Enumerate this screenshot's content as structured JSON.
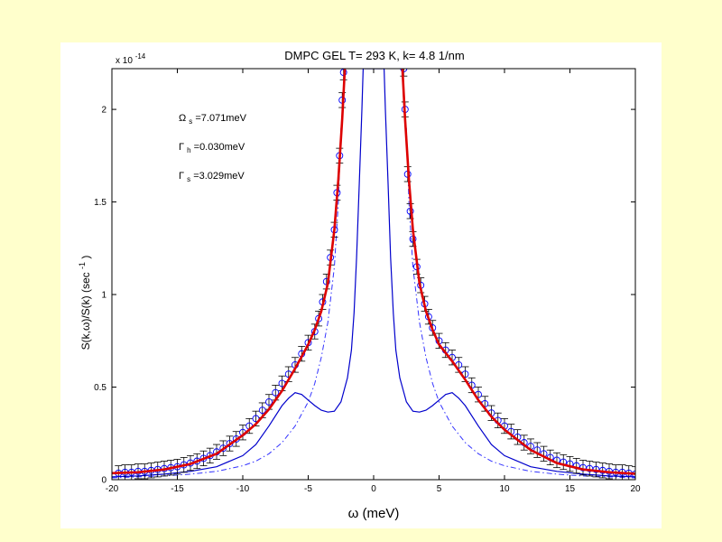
{
  "chart_data": {
    "type": "scatter",
    "title": "DMPC GEL  T= 293 K, k= 4.8 1/nm",
    "xlabel": "ω (meV)",
    "ylabel": "S(k,ω)/S(k) (sec",
    "ylabel_sup": "-1",
    "ylabel_close": ")",
    "y_multiplier": "x 10",
    "y_multiplier_exp": "-14",
    "xlim": [
      -20,
      20
    ],
    "ylim": [
      0,
      2.22
    ],
    "xticks": [
      -20,
      -15,
      -10,
      -5,
      0,
      5,
      10,
      15,
      20
    ],
    "yticks": [
      0,
      0.5,
      1,
      1.5,
      2
    ],
    "ytick_labels": [
      "0",
      "0.5",
      "1",
      "1.5",
      "2"
    ],
    "grid": false,
    "annotations": [
      {
        "sym": "Ω",
        "sub": "s",
        "text": "=7.071meV"
      },
      {
        "sym": "Γ",
        "sub": "h",
        "text": "=0.030meV"
      },
      {
        "sym": "Γ",
        "sub": "s",
        "text": "=3.029meV"
      }
    ],
    "series": [
      {
        "style": "markers with error bars",
        "marker": "circle",
        "color": "#0000ff",
        "errorbar_color": "#000000",
        "x": [
          -19.5,
          -19.0,
          -18.5,
          -18.0,
          -17.5,
          -17.0,
          -16.5,
          -16.0,
          -15.5,
          -15.0,
          -14.5,
          -14.0,
          -13.5,
          -13.0,
          -12.5,
          -12.0,
          -11.5,
          -11.0,
          -10.5,
          -10.0,
          -9.5,
          -9.0,
          -8.5,
          -8.0,
          -7.5,
          -7.0,
          -6.5,
          -6.0,
          -5.5,
          -5.0,
          -4.5,
          -4.2,
          -3.9,
          -3.6,
          -3.3,
          -3.0,
          -2.8,
          -2.6,
          -2.4,
          -2.3,
          2.3,
          2.4,
          2.6,
          2.8,
          3.0,
          3.3,
          3.6,
          3.9,
          4.2,
          4.5,
          5.0,
          5.5,
          6.0,
          6.5,
          7.0,
          7.5,
          8.0,
          8.5,
          9.0,
          9.5,
          10.0,
          10.5,
          11.0,
          11.5,
          12.0,
          12.5,
          13.0,
          13.5,
          14.0,
          14.5,
          15.0,
          15.5,
          16.0,
          16.5,
          17.0,
          17.5,
          18.0,
          18.5,
          19.0,
          19.5,
          20.0
        ],
        "y": [
          0.035,
          0.04,
          0.04,
          0.045,
          0.045,
          0.05,
          0.055,
          0.06,
          0.065,
          0.07,
          0.08,
          0.09,
          0.1,
          0.115,
          0.13,
          0.15,
          0.17,
          0.195,
          0.22,
          0.255,
          0.29,
          0.33,
          0.375,
          0.42,
          0.47,
          0.52,
          0.57,
          0.62,
          0.68,
          0.74,
          0.8,
          0.87,
          0.96,
          1.07,
          1.2,
          1.35,
          1.55,
          1.75,
          2.05,
          2.2,
          2.22,
          2.0,
          1.65,
          1.45,
          1.3,
          1.15,
          1.05,
          0.95,
          0.88,
          0.82,
          0.75,
          0.7,
          0.66,
          0.62,
          0.57,
          0.51,
          0.46,
          0.41,
          0.36,
          0.32,
          0.29,
          0.26,
          0.23,
          0.2,
          0.18,
          0.16,
          0.14,
          0.12,
          0.105,
          0.095,
          0.085,
          0.075,
          0.065,
          0.06,
          0.055,
          0.05,
          0.045,
          0.04,
          0.04,
          0.035,
          0.03
        ],
        "yerr": 0.04
      },
      {
        "style": "thick solid fit",
        "color": "#dd0000",
        "x": [
          -20,
          -18,
          -16,
          -14,
          -12,
          -10,
          -9,
          -8,
          -7,
          -6,
          -5,
          -4.5,
          -4,
          -3.5,
          -3,
          -2.7,
          -2.4,
          -2.2,
          2.2,
          2.4,
          2.7,
          3,
          3.5,
          4,
          4.5,
          5,
          6,
          7,
          8,
          9,
          10,
          12,
          14,
          16,
          18,
          20
        ],
        "y": [
          0.035,
          0.04,
          0.055,
          0.085,
          0.14,
          0.24,
          0.3,
          0.38,
          0.48,
          0.6,
          0.73,
          0.81,
          0.91,
          1.06,
          1.35,
          1.62,
          1.95,
          2.22,
          2.22,
          1.95,
          1.62,
          1.35,
          1.06,
          0.91,
          0.81,
          0.73,
          0.64,
          0.54,
          0.43,
          0.34,
          0.27,
          0.16,
          0.09,
          0.055,
          0.04,
          0.032
        ]
      },
      {
        "style": "solid",
        "color": "#0000cc",
        "x": [
          -20,
          -18,
          -16,
          -14,
          -12,
          -10,
          -9,
          -8,
          -7,
          -6.5,
          -6,
          -5.5,
          -5,
          -4.5,
          -4,
          -3.5,
          -3,
          -2.5,
          -2,
          -1.7,
          -1.5,
          -1.3,
          -1.1,
          -0.9,
          -0.8,
          0.8,
          0.9,
          1.1,
          1.3,
          1.5,
          1.7,
          2,
          2.5,
          3,
          3.5,
          4,
          4.5,
          5,
          5.5,
          6,
          6.5,
          7,
          8,
          9,
          10,
          12,
          14,
          16,
          18,
          20
        ],
        "y": [
          0.015,
          0.02,
          0.03,
          0.045,
          0.07,
          0.13,
          0.19,
          0.29,
          0.4,
          0.44,
          0.47,
          0.46,
          0.43,
          0.4,
          0.375,
          0.365,
          0.37,
          0.42,
          0.55,
          0.7,
          0.9,
          1.2,
          1.6,
          2.0,
          2.22,
          2.22,
          2.0,
          1.6,
          1.2,
          0.9,
          0.7,
          0.55,
          0.42,
          0.37,
          0.365,
          0.375,
          0.4,
          0.43,
          0.46,
          0.47,
          0.44,
          0.4,
          0.29,
          0.19,
          0.13,
          0.07,
          0.045,
          0.03,
          0.02,
          0.015
        ]
      },
      {
        "style": "dash-dot",
        "color": "#3333ff",
        "x": [
          -20,
          -18,
          -16,
          -14,
          -12,
          -10,
          -9,
          -8,
          -7,
          -6,
          -5,
          -4.5,
          -4,
          -3.5,
          -3,
          -2.7,
          -2.5,
          2.5,
          2.7,
          3,
          3.5,
          4,
          4.5,
          5,
          6,
          7,
          8,
          9,
          10,
          12,
          14,
          16,
          18,
          20
        ],
        "y": [
          0.01,
          0.015,
          0.02,
          0.03,
          0.045,
          0.075,
          0.1,
          0.14,
          0.2,
          0.29,
          0.42,
          0.52,
          0.66,
          0.85,
          1.15,
          1.5,
          1.9,
          1.9,
          1.5,
          1.15,
          0.85,
          0.66,
          0.52,
          0.42,
          0.29,
          0.2,
          0.14,
          0.1,
          0.075,
          0.045,
          0.03,
          0.02,
          0.015,
          0.01
        ]
      }
    ]
  }
}
